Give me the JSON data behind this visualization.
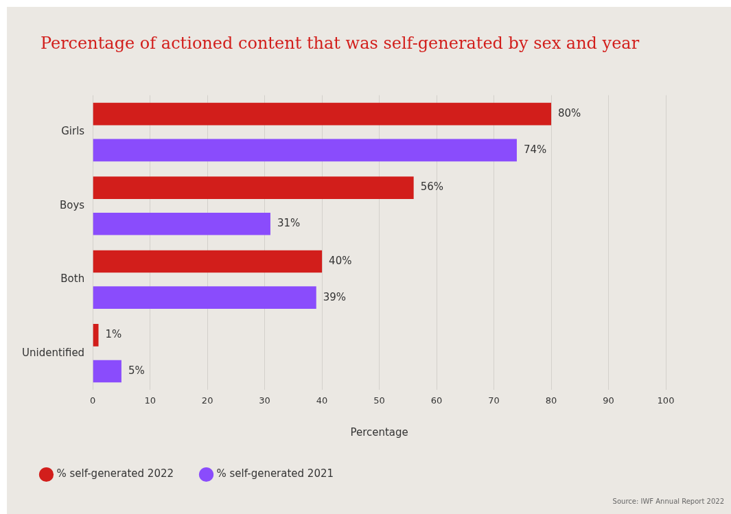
{
  "chart_data": {
    "type": "bar",
    "orientation": "horizontal",
    "title": "Percentage of actioned content that was self-generated by sex and year",
    "xlabel": "Percentage",
    "categories": [
      "Girls",
      "Boys",
      "Both",
      "Unidentified"
    ],
    "series": [
      {
        "name": "% self-generated 2022",
        "color": "#d21e1b",
        "values": [
          80,
          56,
          40,
          1
        ],
        "value_labels": [
          "80%",
          "56%",
          "40%",
          "1%"
        ]
      },
      {
        "name": "% self-generated 2021",
        "color": "#8a4cfc",
        "values": [
          74,
          31,
          39,
          5
        ],
        "value_labels": [
          "74%",
          "31%",
          "39%",
          "5%"
        ]
      }
    ],
    "xlim": [
      0,
      100
    ],
    "xticks": [
      0,
      10,
      20,
      30,
      40,
      50,
      60,
      70,
      80,
      90,
      100
    ],
    "grid": "x",
    "legend": "bottom left",
    "annotations": [
      "Source: IWF Annual Report 2022"
    ]
  }
}
